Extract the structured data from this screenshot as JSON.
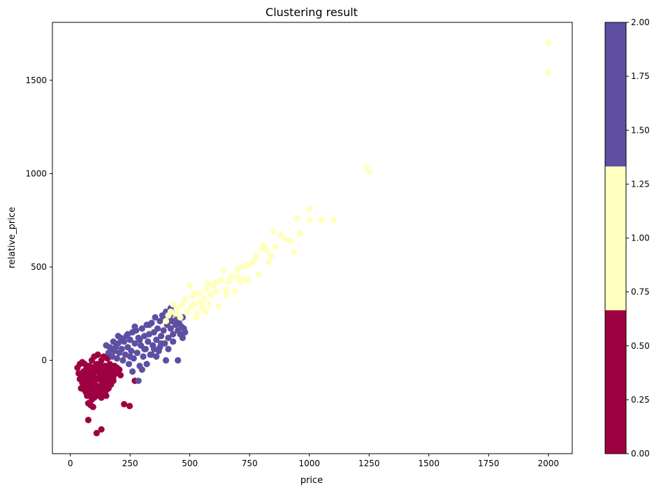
{
  "chart_data": {
    "type": "scatter",
    "title": "Clustering result",
    "xlabel": "price",
    "ylabel": "relative_price",
    "xlim": [
      -75,
      2100
    ],
    "ylim": [
      -500,
      1810
    ],
    "xticks": [
      0,
      250,
      500,
      750,
      1000,
      1250,
      1500,
      1750,
      2000
    ],
    "xtick_labels": [
      "0",
      "250",
      "500",
      "750",
      "1000",
      "1250",
      "1500",
      "1750",
      "2000"
    ],
    "yticks": [
      0,
      500,
      1000,
      1500
    ],
    "ytick_labels": [
      "0",
      "500",
      "1000",
      "1500"
    ],
    "grid": false,
    "colorbar": {
      "min": 0,
      "max": 2,
      "ticks": [
        0.0,
        0.25,
        0.5,
        0.75,
        1.0,
        1.25,
        1.5,
        1.75,
        2.0
      ],
      "tick_labels": [
        "0.00",
        "0.25",
        "0.50",
        "0.75",
        "1.00",
        "1.25",
        "1.50",
        "1.75",
        "2.00"
      ],
      "colors": [
        "#9e0142",
        "#ffffbf",
        "#5e4fa2"
      ]
    },
    "series": [
      {
        "cluster": 0,
        "color": "#9e0142",
        "points": [
          [
            30,
            -40
          ],
          [
            35,
            -70
          ],
          [
            40,
            -100
          ],
          [
            45,
            -150
          ],
          [
            50,
            -120
          ],
          [
            55,
            -60
          ],
          [
            55,
            -90
          ],
          [
            60,
            -20
          ],
          [
            60,
            -130
          ],
          [
            65,
            -170
          ],
          [
            65,
            -50
          ],
          [
            70,
            -110
          ],
          [
            70,
            -190
          ],
          [
            75,
            -80
          ],
          [
            75,
            -140
          ],
          [
            75,
            -230
          ],
          [
            80,
            -30
          ],
          [
            80,
            -60
          ],
          [
            80,
            -180
          ],
          [
            85,
            -100
          ],
          [
            85,
            -150
          ],
          [
            90,
            0
          ],
          [
            90,
            -70
          ],
          [
            90,
            -210
          ],
          [
            95,
            -120
          ],
          [
            95,
            -40
          ],
          [
            100,
            -160
          ],
          [
            100,
            20
          ],
          [
            100,
            -90
          ],
          [
            105,
            -60
          ],
          [
            105,
            -130
          ],
          [
            110,
            -20
          ],
          [
            110,
            -180
          ],
          [
            115,
            -100
          ],
          [
            115,
            30
          ],
          [
            120,
            -140
          ],
          [
            120,
            -50
          ],
          [
            125,
            -80
          ],
          [
            125,
            -170
          ],
          [
            130,
            0
          ],
          [
            130,
            -110
          ],
          [
            135,
            -60
          ],
          [
            135,
            -150
          ],
          [
            140,
            20
          ],
          [
            140,
            -90
          ],
          [
            145,
            -30
          ],
          [
            145,
            -130
          ],
          [
            150,
            -70
          ],
          [
            150,
            -160
          ],
          [
            155,
            10
          ],
          [
            155,
            -100
          ],
          [
            160,
            -50
          ],
          [
            160,
            -130
          ],
          [
            165,
            -20
          ],
          [
            165,
            -80
          ],
          [
            170,
            -110
          ],
          [
            175,
            -40
          ],
          [
            175,
            -60
          ],
          [
            180,
            -90
          ],
          [
            185,
            -30
          ],
          [
            190,
            -70
          ],
          [
            195,
            -40
          ],
          [
            200,
            -60
          ],
          [
            205,
            -50
          ],
          [
            210,
            -80
          ],
          [
            40,
            -20
          ],
          [
            50,
            -10
          ],
          [
            60,
            -160
          ],
          [
            70,
            -140
          ],
          [
            80,
            -120
          ],
          [
            90,
            -170
          ],
          [
            100,
            -200
          ],
          [
            110,
            -150
          ],
          [
            120,
            -190
          ],
          [
            130,
            -200
          ],
          [
            140,
            -170
          ],
          [
            150,
            -190
          ],
          [
            160,
            -150
          ],
          [
            170,
            -130
          ],
          [
            180,
            -110
          ],
          [
            75,
            -320
          ],
          [
            110,
            -390
          ],
          [
            130,
            -370
          ],
          [
            225,
            -235
          ],
          [
            248,
            -245
          ],
          [
            270,
            -110
          ],
          [
            95,
            -250
          ],
          [
            85,
            -240
          ],
          [
            100,
            -60
          ],
          [
            120,
            -100
          ],
          [
            130,
            -40
          ],
          [
            140,
            -60
          ],
          [
            60,
            -80
          ],
          [
            115,
            -60
          ],
          [
            125,
            -20
          ],
          [
            145,
            -80
          ],
          [
            105,
            -30
          ],
          [
            95,
            -100
          ],
          [
            135,
            -120
          ],
          [
            155,
            -140
          ]
        ]
      },
      {
        "cluster": 2,
        "color": "#5e4fa2",
        "points": [
          [
            150,
            80
          ],
          [
            160,
            40
          ],
          [
            170,
            60
          ],
          [
            175,
            20
          ],
          [
            180,
            100
          ],
          [
            190,
            70
          ],
          [
            195,
            10
          ],
          [
            200,
            90
          ],
          [
            205,
            40
          ],
          [
            210,
            120
          ],
          [
            215,
            60
          ],
          [
            220,
            0
          ],
          [
            225,
            100
          ],
          [
            230,
            30
          ],
          [
            235,
            130
          ],
          [
            240,
            70
          ],
          [
            245,
            -20
          ],
          [
            250,
            110
          ],
          [
            255,
            50
          ],
          [
            260,
            150
          ],
          [
            265,
            10
          ],
          [
            270,
            90
          ],
          [
            275,
            160
          ],
          [
            280,
            40
          ],
          [
            285,
            120
          ],
          [
            290,
            -30
          ],
          [
            295,
            80
          ],
          [
            300,
            170
          ],
          [
            305,
            20
          ],
          [
            310,
            130
          ],
          [
            315,
            60
          ],
          [
            320,
            190
          ],
          [
            325,
            100
          ],
          [
            330,
            140
          ],
          [
            335,
            30
          ],
          [
            340,
            200
          ],
          [
            345,
            80
          ],
          [
            350,
            150
          ],
          [
            355,
            230
          ],
          [
            360,
            110
          ],
          [
            365,
            170
          ],
          [
            370,
            50
          ],
          [
            375,
            210
          ],
          [
            380,
            130
          ],
          [
            385,
            240
          ],
          [
            390,
            160
          ],
          [
            395,
            90
          ],
          [
            400,
            260
          ],
          [
            405,
            190
          ],
          [
            410,
            120
          ],
          [
            415,
            230
          ],
          [
            420,
            170
          ],
          [
            425,
            210
          ],
          [
            430,
            140
          ],
          [
            435,
            250
          ],
          [
            440,
            190
          ],
          [
            445,
            220
          ],
          [
            450,
            160
          ],
          [
            455,
            200
          ],
          [
            460,
            140
          ],
          [
            465,
            180
          ],
          [
            470,
            120
          ],
          [
            475,
            170
          ],
          [
            480,
            150
          ],
          [
            400,
            0
          ],
          [
            450,
            0
          ],
          [
            410,
            60
          ],
          [
            375,
            70
          ],
          [
            340,
            30
          ],
          [
            260,
            -60
          ],
          [
            285,
            -110
          ],
          [
            300,
            -50
          ],
          [
            320,
            -20
          ],
          [
            360,
            20
          ],
          [
            420,
            280
          ],
          [
            395,
            230
          ],
          [
            330,
            190
          ],
          [
            310,
            60
          ],
          [
            270,
            180
          ],
          [
            240,
            140
          ],
          [
            220,
            110
          ],
          [
            200,
            130
          ],
          [
            185,
            50
          ],
          [
            165,
            70
          ],
          [
            250,
            20
          ],
          [
            290,
            110
          ],
          [
            350,
            60
          ],
          [
            380,
            90
          ],
          [
            430,
            100
          ],
          [
            470,
            230
          ]
        ]
      },
      {
        "cluster": 1,
        "color": "#ffffbf",
        "points": [
          [
            400,
            210
          ],
          [
            410,
            240
          ],
          [
            420,
            260
          ],
          [
            430,
            300
          ],
          [
            440,
            250
          ],
          [
            450,
            280
          ],
          [
            460,
            230
          ],
          [
            470,
            300
          ],
          [
            480,
            330
          ],
          [
            490,
            260
          ],
          [
            500,
            400
          ],
          [
            505,
            290
          ],
          [
            510,
            340
          ],
          [
            520,
            300
          ],
          [
            525,
            230
          ],
          [
            530,
            250
          ],
          [
            540,
            360
          ],
          [
            545,
            310
          ],
          [
            550,
            280
          ],
          [
            560,
            330
          ],
          [
            565,
            260
          ],
          [
            570,
            380
          ],
          [
            580,
            300
          ],
          [
            590,
            350
          ],
          [
            600,
            400
          ],
          [
            610,
            420
          ],
          [
            620,
            290
          ],
          [
            630,
            430
          ],
          [
            640,
            480
          ],
          [
            650,
            380
          ],
          [
            660,
            420
          ],
          [
            670,
            440
          ],
          [
            680,
            450
          ],
          [
            690,
            370
          ],
          [
            700,
            490
          ],
          [
            710,
            420
          ],
          [
            720,
            500
          ],
          [
            730,
            440
          ],
          [
            740,
            430
          ],
          [
            760,
            520
          ],
          [
            780,
            560
          ],
          [
            790,
            460
          ],
          [
            800,
            600
          ],
          [
            810,
            620
          ],
          [
            820,
            590
          ],
          [
            830,
            530
          ],
          [
            840,
            560
          ],
          [
            850,
            690
          ],
          [
            860,
            610
          ],
          [
            880,
            670
          ],
          [
            900,
            650
          ],
          [
            920,
            640
          ],
          [
            935,
            580
          ],
          [
            950,
            760
          ],
          [
            960,
            680
          ],
          [
            1000,
            810
          ],
          [
            1000,
            750
          ],
          [
            1050,
            750
          ],
          [
            1100,
            750
          ],
          [
            1240,
            1030
          ],
          [
            1250,
            1010
          ],
          [
            2000,
            1700
          ],
          [
            2000,
            1540
          ],
          [
            520,
            360
          ],
          [
            575,
            410
          ],
          [
            610,
            370
          ],
          [
            655,
            350
          ],
          [
            700,
            450
          ],
          [
            740,
            510
          ],
          [
            770,
            530
          ]
        ]
      }
    ]
  }
}
